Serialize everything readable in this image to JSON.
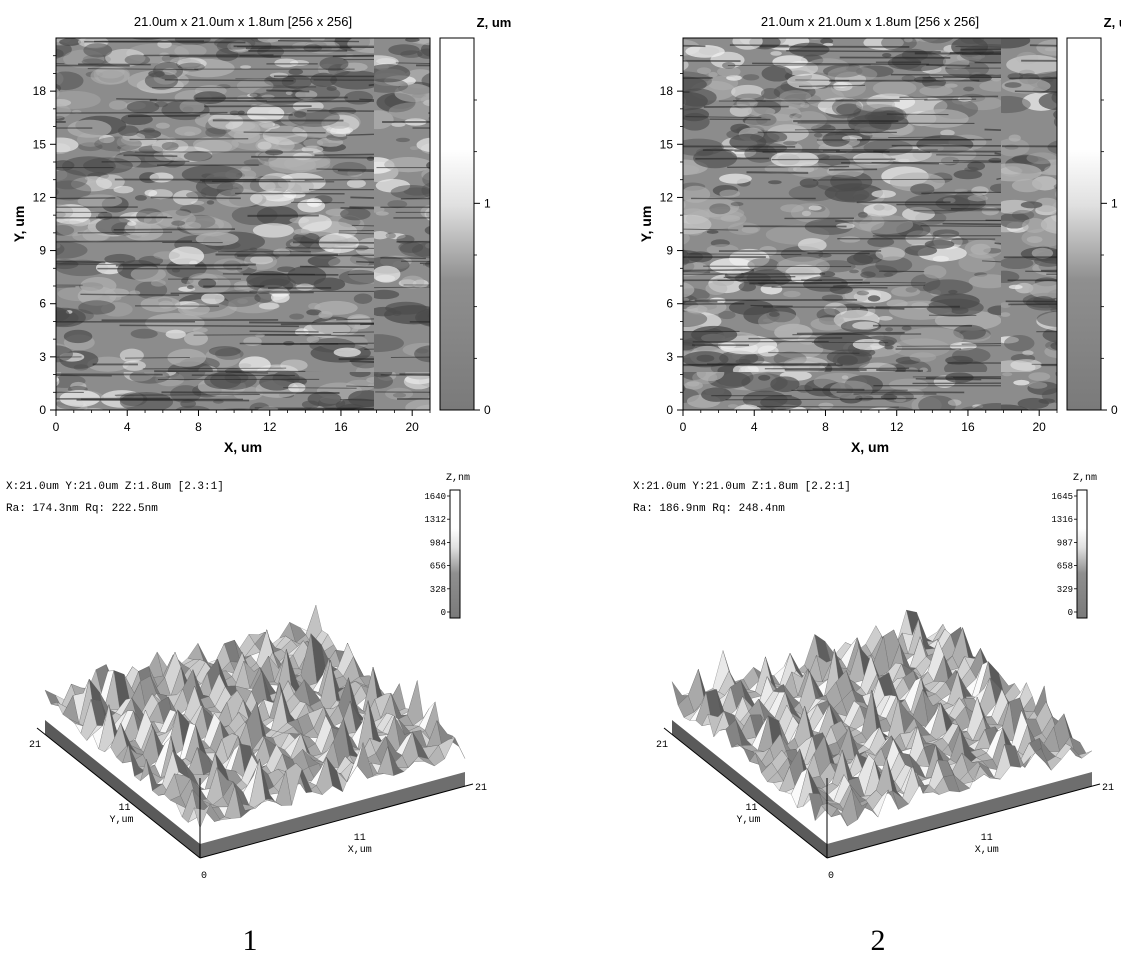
{
  "panels": [
    {
      "label": "1",
      "title": "21.0um x 21.0um x 1.8um [256 x 256]",
      "xlabel": "X, um",
      "ylabel": "Y, um",
      "zlabel": "Z, um",
      "xticks": [
        "0",
        "4",
        "8",
        "12",
        "16",
        "20"
      ],
      "yticks": [
        "0",
        "3",
        "6",
        "9",
        "12",
        "15",
        "18"
      ],
      "zticks": [
        "0",
        "1"
      ],
      "info_line1": "X:21.0um  Y:21.0um  Z:1.8um [2.3:1]",
      "info_line2": "Ra: 174.3nm  Rq: 222.5nm",
      "z3d_label": "Z,nm",
      "z3d_ticks": [
        "1640",
        "1312",
        "984",
        "656",
        "328",
        "0"
      ],
      "y3d_ticks": [
        "21",
        "11"
      ],
      "y3d_label": "Y,um",
      "x3d_ticks": [
        "0",
        "11",
        "21"
      ],
      "x3d_label": "X,um"
    },
    {
      "label": "2",
      "title": "21.0um x 21.0um x 1.8um [256 x 256]",
      "xlabel": "X, um",
      "ylabel": "Y, um",
      "zlabel": "Z, um",
      "xticks": [
        "0",
        "4",
        "8",
        "12",
        "16",
        "20"
      ],
      "yticks": [
        "0",
        "3",
        "6",
        "9",
        "12",
        "15",
        "18"
      ],
      "zticks": [
        "0",
        "1"
      ],
      "info_line1": "X:21.0um  Y:21.0um  Z:1.8um [2.2:1]",
      "info_line2": "Ra: 186.9nm  Rq: 248.4nm",
      "z3d_label": "Z,nm",
      "z3d_ticks": [
        "1645",
        "1316",
        "987",
        "658",
        "329",
        "0"
      ],
      "y3d_ticks": [
        "21",
        "11"
      ],
      "y3d_label": "Y,um",
      "x3d_ticks": [
        "0",
        "11",
        "21"
      ],
      "x3d_label": "X,um"
    }
  ],
  "chart_data": [
    {
      "type": "heatmap",
      "title": "21.0um x 21.0um x 1.8um [256 x 256]",
      "xlabel": "X, um",
      "ylabel": "Y, um",
      "zlabel": "Z, um",
      "xlim": [
        0,
        21
      ],
      "ylim": [
        0,
        21
      ],
      "zlim": [
        0,
        1.8
      ],
      "grid_size": [
        256,
        256
      ],
      "roughness": {
        "Ra_nm": 174.3,
        "Rq_nm": 222.5
      },
      "z_range_nm": [
        0,
        1640
      ],
      "aspect": "2.3:1"
    },
    {
      "type": "heatmap",
      "title": "21.0um x 21.0um x 1.8um [256 x 256]",
      "xlabel": "X, um",
      "ylabel": "Y, um",
      "zlabel": "Z, um",
      "xlim": [
        0,
        21
      ],
      "ylim": [
        0,
        21
      ],
      "zlim": [
        0,
        1.8
      ],
      "grid_size": [
        256,
        256
      ],
      "roughness": {
        "Ra_nm": 186.9,
        "Rq_nm": 248.4
      },
      "z_range_nm": [
        0,
        1645
      ],
      "aspect": "2.2:1"
    }
  ],
  "colors": {
    "map_dark": "#4a4a4a",
    "map_mid": "#8c8c8c",
    "map_light": "#f2f2f2",
    "base_side": "#6e6e6e"
  }
}
